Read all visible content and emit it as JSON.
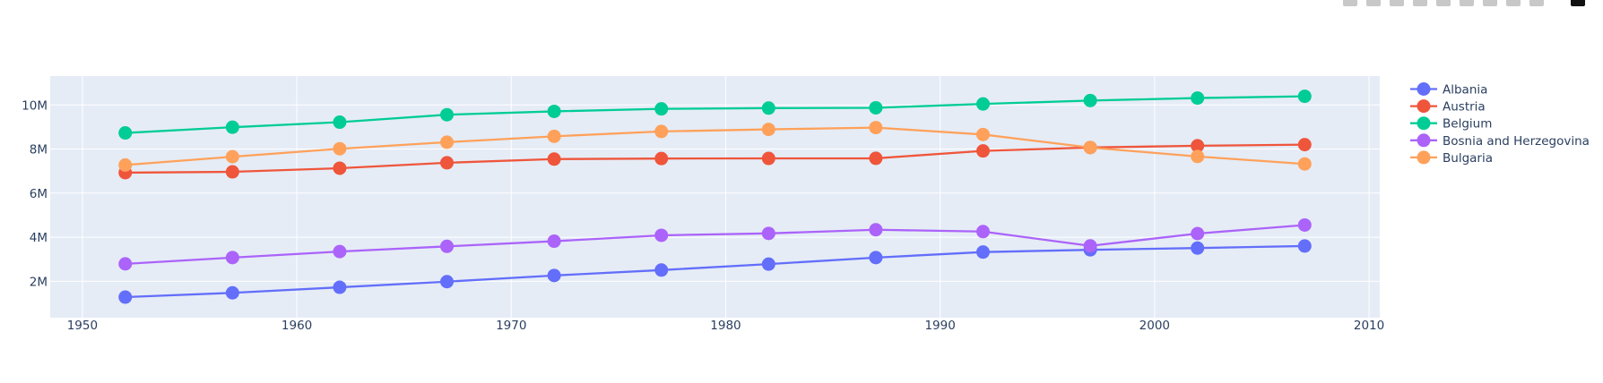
{
  "modebar": {
    "buttons": [
      "camera-icon",
      "zoom-icon",
      "pan-icon",
      "box-select-icon",
      "lasso-icon",
      "zoom-in-icon",
      "zoom-out-icon",
      "autoscale-icon",
      "reset-axes-icon",
      "plotly-logo-icon"
    ]
  },
  "chart_data": {
    "type": "line",
    "title": "",
    "xlabel": "",
    "ylabel": "",
    "xlim": [
      1948.5,
      2010.5
    ],
    "ylim": [
      350000,
      11310000
    ],
    "grid": true,
    "legend_position": "right-top",
    "x_ticks": [
      1950,
      1960,
      1970,
      1980,
      1990,
      2000,
      2010
    ],
    "x_tick_labels": [
      "1950",
      "1960",
      "1970",
      "1980",
      "1990",
      "2000",
      "2010"
    ],
    "y_ticks": [
      2000000,
      4000000,
      6000000,
      8000000,
      10000000
    ],
    "y_tick_labels": [
      "2M",
      "4M",
      "6M",
      "8M",
      "10M"
    ],
    "x": [
      1952,
      1957,
      1962,
      1967,
      1972,
      1977,
      1982,
      1987,
      1992,
      1997,
      2002,
      2007
    ],
    "series": [
      {
        "name": "Albania",
        "color": "#636efa",
        "values": [
          1282697,
          1476505,
          1728137,
          1984060,
          2263554,
          2509048,
          2780097,
          3075321,
          3326498,
          3428038,
          3508512,
          3600523
        ]
      },
      {
        "name": "Austria",
        "color": "#EF553B",
        "values": [
          6927772,
          6965860,
          7129864,
          7376998,
          7544201,
          7568430,
          7574613,
          7578903,
          7914969,
          8069876,
          8148312,
          8199783
        ]
      },
      {
        "name": "Belgium",
        "color": "#00cc96",
        "values": [
          8730405,
          8989111,
          9218400,
          9556500,
          9709100,
          9821800,
          9856303,
          9870200,
          10045622,
          10199787,
          10311970,
          10392226
        ]
      },
      {
        "name": "Bosnia and Herzegovina",
        "color": "#ab63fa",
        "values": [
          2791000,
          3076000,
          3349000,
          3585000,
          3819000,
          4086000,
          4172693,
          4338977,
          4256013,
          3607000,
          4165416,
          4552198
        ]
      },
      {
        "name": "Bulgaria",
        "color": "#FFA15A",
        "values": [
          7274900,
          7651254,
          8012946,
          8310226,
          8576200,
          8797022,
          8892098,
          8971958,
          8658506,
          8066057,
          7661799,
          7322858
        ]
      }
    ]
  }
}
